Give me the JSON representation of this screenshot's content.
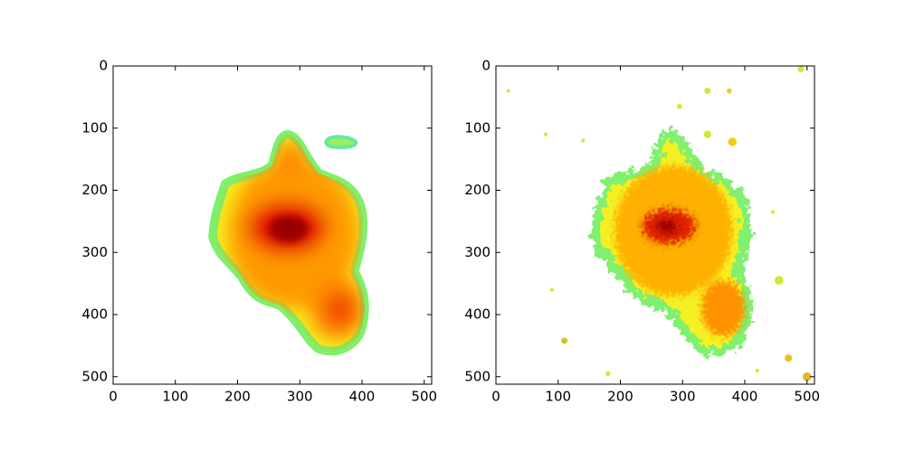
{
  "chart_data": [
    {
      "type": "image",
      "xlim": [
        0,
        512
      ],
      "ylim": [
        512,
        0
      ],
      "xticks": [
        0,
        100,
        200,
        300,
        400,
        500
      ],
      "yticks": [
        0,
        100,
        200,
        300,
        400,
        500
      ]
    },
    {
      "type": "image",
      "xlim": [
        0,
        512
      ],
      "ylim": [
        512,
        0
      ],
      "xticks": [
        0,
        100,
        200,
        300,
        400,
        500
      ],
      "yticks": [
        0,
        100,
        200,
        300,
        400,
        500
      ]
    }
  ]
}
